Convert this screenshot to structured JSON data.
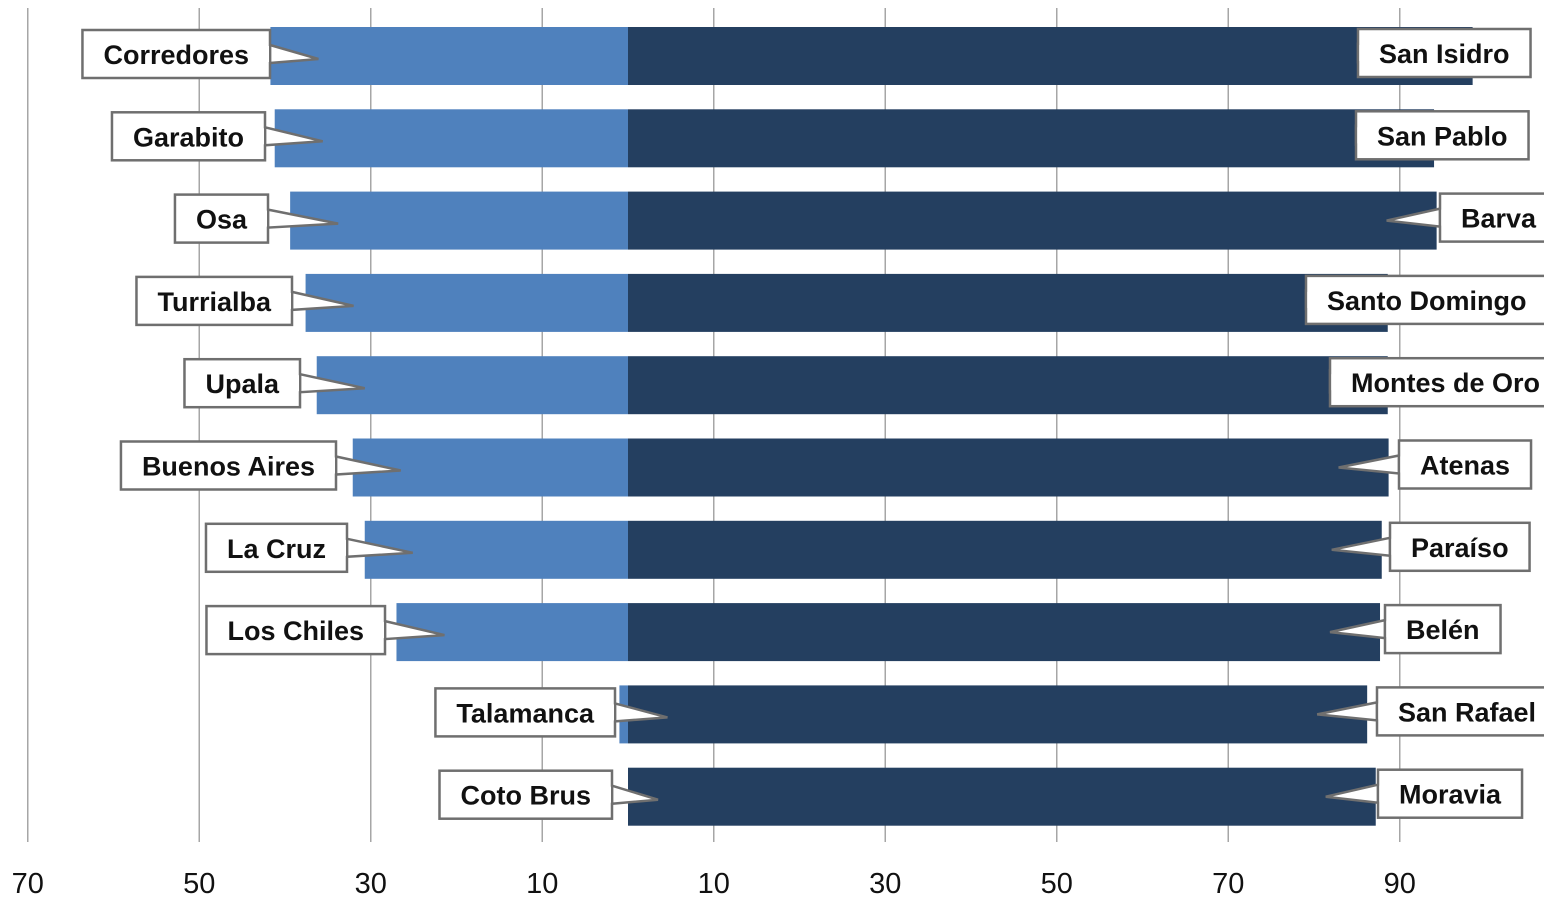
{
  "chart_data": {
    "type": "bar",
    "orientation": "horizontal",
    "layout": "diverging",
    "colors": {
      "left": "#4f81bd",
      "right": "#243f60",
      "grid": "#a6a6a6"
    },
    "x_ticks": [
      {
        "value": -70,
        "label": "70"
      },
      {
        "value": -50,
        "label": "50"
      },
      {
        "value": -30,
        "label": "30"
      },
      {
        "value": -10,
        "label": "10"
      },
      {
        "value": 10,
        "label": "10"
      },
      {
        "value": 30,
        "label": "30"
      },
      {
        "value": 50,
        "label": "50"
      },
      {
        "value": 70,
        "label": "70"
      },
      {
        "value": 90,
        "label": "90"
      }
    ],
    "xlim": [
      -70,
      100
    ],
    "grid": true,
    "rows": [
      {
        "left_label": "Corredores",
        "left_value": 41.7,
        "right_label": "San Isidro",
        "right_value": 98.5
      },
      {
        "left_label": "Garabito",
        "left_value": 41.2,
        "right_label": "San Pablo",
        "right_value": 94.0
      },
      {
        "left_label": "Osa",
        "left_value": 39.4,
        "right_label": "Barva",
        "right_value": 94.3
      },
      {
        "left_label": "Turrialba",
        "left_value": 37.6,
        "right_label": "Santo Domingo",
        "right_value": 88.6
      },
      {
        "left_label": "Upala",
        "left_value": 36.3,
        "right_label": "Montes de Oro",
        "right_value": 88.6
      },
      {
        "left_label": "Buenos Aires",
        "left_value": 32.1,
        "right_label": "Atenas",
        "right_value": 88.7
      },
      {
        "left_label": "La Cruz",
        "left_value": 30.7,
        "right_label": "Paraíso",
        "right_value": 87.9
      },
      {
        "left_label": "Los Chiles",
        "left_value": 27.0,
        "right_label": "Belén",
        "right_value": 87.7
      },
      {
        "left_label": "Talamanca",
        "left_value": 1.0,
        "right_label": "San Rafael",
        "right_value": 86.2
      },
      {
        "left_label": "Coto Brus",
        "left_value": 0.0,
        "right_label": "Moravia",
        "right_value": 87.2
      }
    ]
  }
}
